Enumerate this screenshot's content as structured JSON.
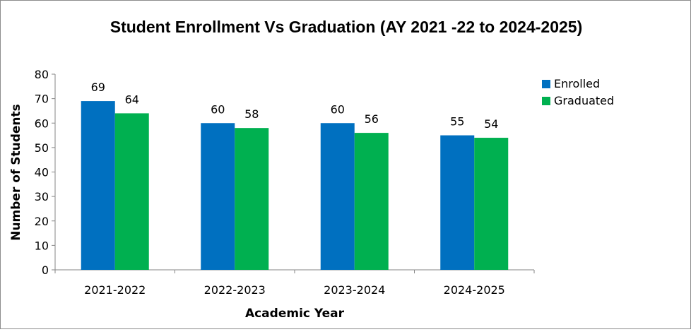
{
  "chart_data": {
    "type": "bar",
    "title": "Student Enrollment Vs Graduation (AY 2021 -22 to 2024-2025)",
    "xlabel": "Academic Year",
    "ylabel": "Number of Students",
    "categories": [
      "2021-2022",
      "2022-2023",
      "2023-2024",
      "2024-2025"
    ],
    "series": [
      {
        "name": "Enrolled",
        "values": [
          69,
          60,
          60,
          55
        ],
        "color": "#0070C0"
      },
      {
        "name": "Graduated",
        "values": [
          64,
          58,
          56,
          54
        ],
        "color": "#00B050"
      }
    ],
    "ylim": [
      0,
      80
    ],
    "yticks": [
      0,
      10,
      20,
      30,
      40,
      50,
      60,
      70,
      80
    ],
    "data_labels": true,
    "grid": false,
    "legend": "right"
  }
}
